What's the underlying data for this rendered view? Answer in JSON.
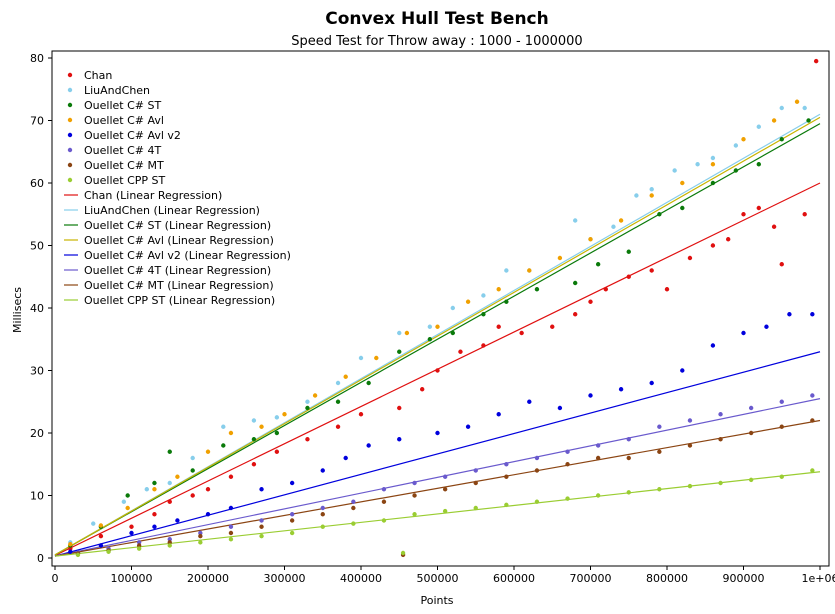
{
  "chart_data": {
    "type": "scatter",
    "title": "Convex Hull Test Bench",
    "subtitle": "Speed Test for Throw away : 1000 - 1000000",
    "xlabel": "Points",
    "ylabel": "Millisecs",
    "xlim": [
      0,
      1000000
    ],
    "ylim": [
      0,
      80
    ],
    "x_ticks": [
      0,
      100000,
      200000,
      300000,
      400000,
      500000,
      600000,
      700000,
      800000,
      900000,
      1000000
    ],
    "x_tick_labels": [
      "0",
      "100000",
      "200000",
      "300000",
      "400000",
      "500000",
      "600000",
      "700000",
      "800000",
      "900000",
      "1e+06"
    ],
    "y_ticks": [
      0,
      10,
      20,
      30,
      40,
      50,
      60,
      70,
      80
    ],
    "y_tick_labels": [
      "0",
      "10",
      "20",
      "30",
      "40",
      "50",
      "60",
      "70",
      "80"
    ],
    "grid": false,
    "legend_placement": "top-left",
    "series": [
      {
        "name": "Chan",
        "color": "#e01010",
        "regression": [
          0.4,
          60.0
        ],
        "points": [
          [
            20000,
            1.5
          ],
          [
            60000,
            3.5
          ],
          [
            100000,
            5
          ],
          [
            130000,
            7
          ],
          [
            150000,
            9
          ],
          [
            180000,
            10
          ],
          [
            200000,
            11
          ],
          [
            230000,
            13
          ],
          [
            260000,
            15
          ],
          [
            290000,
            17
          ],
          [
            330000,
            19
          ],
          [
            370000,
            21
          ],
          [
            400000,
            23
          ],
          [
            450000,
            24
          ],
          [
            480000,
            27
          ],
          [
            500000,
            30
          ],
          [
            530000,
            33
          ],
          [
            560000,
            34
          ],
          [
            580000,
            37
          ],
          [
            610000,
            36
          ],
          [
            650000,
            37
          ],
          [
            680000,
            39
          ],
          [
            700000,
            41
          ],
          [
            720000,
            43
          ],
          [
            750000,
            45
          ],
          [
            780000,
            46
          ],
          [
            800000,
            43
          ],
          [
            830000,
            48
          ],
          [
            860000,
            50
          ],
          [
            880000,
            51
          ],
          [
            900000,
            55
          ],
          [
            920000,
            56
          ],
          [
            940000,
            53
          ],
          [
            950000,
            47
          ],
          [
            980000,
            55
          ],
          [
            995000,
            79.5
          ]
        ]
      },
      {
        "name": "LiuAndChen",
        "color": "#87ceeb",
        "regression": [
          0.5,
          71.0
        ],
        "points": [
          [
            20000,
            2.5
          ],
          [
            50000,
            5.5
          ],
          [
            90000,
            9
          ],
          [
            120000,
            11
          ],
          [
            150000,
            12
          ],
          [
            180000,
            16
          ],
          [
            220000,
            21
          ],
          [
            260000,
            22
          ],
          [
            290000,
            22.5
          ],
          [
            330000,
            25
          ],
          [
            370000,
            28
          ],
          [
            400000,
            32
          ],
          [
            450000,
            36
          ],
          [
            490000,
            37
          ],
          [
            520000,
            40
          ],
          [
            560000,
            42
          ],
          [
            590000,
            46
          ],
          [
            620000,
            46
          ],
          [
            680000,
            54
          ],
          [
            700000,
            51
          ],
          [
            730000,
            53
          ],
          [
            760000,
            58
          ],
          [
            780000,
            59
          ],
          [
            810000,
            62
          ],
          [
            840000,
            63
          ],
          [
            860000,
            64
          ],
          [
            890000,
            66
          ],
          [
            920000,
            69
          ],
          [
            950000,
            72
          ],
          [
            980000,
            72
          ]
        ]
      },
      {
        "name": "Ouellet C# ST",
        "color": "#0a7a0a",
        "regression": [
          0.5,
          69.5
        ],
        "points": [
          [
            20000,
            2
          ],
          [
            60000,
            5
          ],
          [
            95000,
            10
          ],
          [
            130000,
            12
          ],
          [
            150000,
            17
          ],
          [
            180000,
            14
          ],
          [
            220000,
            18
          ],
          [
            260000,
            19
          ],
          [
            290000,
            20
          ],
          [
            330000,
            24
          ],
          [
            370000,
            25
          ],
          [
            410000,
            28
          ],
          [
            450000,
            33
          ],
          [
            490000,
            35
          ],
          [
            520000,
            36
          ],
          [
            560000,
            39
          ],
          [
            590000,
            41
          ],
          [
            630000,
            43
          ],
          [
            680000,
            44
          ],
          [
            710000,
            47
          ],
          [
            750000,
            49
          ],
          [
            790000,
            55
          ],
          [
            820000,
            56
          ],
          [
            860000,
            60
          ],
          [
            890000,
            62
          ],
          [
            920000,
            63
          ],
          [
            950000,
            67
          ],
          [
            985000,
            70
          ]
        ]
      },
      {
        "name": "Ouellet C# Avl",
        "color": "#f0a000",
        "regression": [
          0.5,
          70.5
        ],
        "points": [
          [
            20000,
            2.2
          ],
          [
            60000,
            5.2
          ],
          [
            95000,
            8
          ],
          [
            130000,
            11
          ],
          [
            160000,
            13
          ],
          [
            200000,
            17
          ],
          [
            230000,
            20
          ],
          [
            270000,
            21
          ],
          [
            300000,
            23
          ],
          [
            340000,
            26
          ],
          [
            380000,
            29
          ],
          [
            420000,
            32
          ],
          [
            460000,
            36
          ],
          [
            500000,
            37
          ],
          [
            540000,
            41
          ],
          [
            580000,
            43
          ],
          [
            620000,
            46
          ],
          [
            660000,
            48
          ],
          [
            700000,
            51
          ],
          [
            740000,
            54
          ],
          [
            780000,
            58
          ],
          [
            820000,
            60
          ],
          [
            860000,
            63
          ],
          [
            900000,
            67
          ],
          [
            940000,
            70
          ],
          [
            970000,
            73
          ]
        ]
      },
      {
        "name": "Ouellet C# Avl v2",
        "color": "#0000dd",
        "regression": [
          0.3,
          33.0
        ],
        "points": [
          [
            20000,
            1
          ],
          [
            60000,
            2
          ],
          [
            100000,
            4
          ],
          [
            130000,
            5
          ],
          [
            160000,
            6
          ],
          [
            200000,
            7
          ],
          [
            230000,
            8
          ],
          [
            270000,
            11
          ],
          [
            310000,
            12
          ],
          [
            350000,
            14
          ],
          [
            380000,
            16
          ],
          [
            410000,
            18
          ],
          [
            450000,
            19
          ],
          [
            500000,
            20
          ],
          [
            540000,
            21
          ],
          [
            580000,
            23
          ],
          [
            620000,
            25
          ],
          [
            660000,
            24
          ],
          [
            700000,
            26
          ],
          [
            740000,
            27
          ],
          [
            780000,
            28
          ],
          [
            820000,
            30
          ],
          [
            860000,
            34
          ],
          [
            900000,
            36
          ],
          [
            930000,
            37
          ],
          [
            960000,
            39
          ],
          [
            990000,
            39
          ]
        ]
      },
      {
        "name": "Ouellet C# 4T",
        "color": "#6a5acd",
        "regression": [
          0.3,
          25.5
        ],
        "points": [
          [
            30000,
            0.8
          ],
          [
            70000,
            1.5
          ],
          [
            110000,
            2.5
          ],
          [
            150000,
            3
          ],
          [
            190000,
            4
          ],
          [
            230000,
            5
          ],
          [
            270000,
            6
          ],
          [
            310000,
            7
          ],
          [
            350000,
            8
          ],
          [
            390000,
            9
          ],
          [
            430000,
            11
          ],
          [
            470000,
            12
          ],
          [
            510000,
            13
          ],
          [
            550000,
            14
          ],
          [
            590000,
            15
          ],
          [
            630000,
            16
          ],
          [
            670000,
            17
          ],
          [
            710000,
            18
          ],
          [
            750000,
            19
          ],
          [
            790000,
            21
          ],
          [
            830000,
            22
          ],
          [
            870000,
            23
          ],
          [
            910000,
            24
          ],
          [
            950000,
            25
          ],
          [
            990000,
            26
          ]
        ]
      },
      {
        "name": "Ouellet C# MT",
        "color": "#8b4513",
        "regression": [
          0.3,
          22.0
        ],
        "points": [
          [
            30000,
            0.7
          ],
          [
            70000,
            1.2
          ],
          [
            110000,
            2
          ],
          [
            150000,
            2.5
          ],
          [
            190000,
            3.5
          ],
          [
            230000,
            4
          ],
          [
            270000,
            5
          ],
          [
            310000,
            6
          ],
          [
            350000,
            7
          ],
          [
            390000,
            8
          ],
          [
            430000,
            9
          ],
          [
            455000,
            0.5
          ],
          [
            470000,
            10
          ],
          [
            510000,
            11
          ],
          [
            550000,
            12
          ],
          [
            590000,
            13
          ],
          [
            630000,
            14
          ],
          [
            670000,
            15
          ],
          [
            710000,
            16
          ],
          [
            750000,
            16
          ],
          [
            790000,
            17
          ],
          [
            830000,
            18
          ],
          [
            870000,
            19
          ],
          [
            910000,
            20
          ],
          [
            950000,
            21
          ],
          [
            990000,
            22
          ]
        ]
      },
      {
        "name": "Ouellet CPP ST",
        "color": "#9acd32",
        "regression": [
          0.3,
          13.8
        ],
        "points": [
          [
            30000,
            0.5
          ],
          [
            70000,
            1
          ],
          [
            110000,
            1.5
          ],
          [
            150000,
            2
          ],
          [
            190000,
            2.5
          ],
          [
            230000,
            3
          ],
          [
            270000,
            3.5
          ],
          [
            310000,
            4
          ],
          [
            350000,
            5
          ],
          [
            390000,
            5.5
          ],
          [
            430000,
            6
          ],
          [
            455000,
            0.8
          ],
          [
            470000,
            7
          ],
          [
            510000,
            7.5
          ],
          [
            550000,
            8
          ],
          [
            590000,
            8.5
          ],
          [
            630000,
            9
          ],
          [
            670000,
            9.5
          ],
          [
            710000,
            10
          ],
          [
            750000,
            10.5
          ],
          [
            790000,
            11
          ],
          [
            830000,
            11.5
          ],
          [
            870000,
            12
          ],
          [
            910000,
            12.5
          ],
          [
            950000,
            13
          ],
          [
            990000,
            14
          ]
        ]
      }
    ],
    "legend": [
      {
        "label": "Chan",
        "kind": "marker",
        "color": "#e01010"
      },
      {
        "label": "LiuAndChen",
        "kind": "marker",
        "color": "#87ceeb"
      },
      {
        "label": "Ouellet C# ST",
        "kind": "marker",
        "color": "#0a7a0a"
      },
      {
        "label": "Ouellet C# Avl",
        "kind": "marker",
        "color": "#f0a000"
      },
      {
        "label": "Ouellet C# Avl v2",
        "kind": "marker",
        "color": "#0000dd"
      },
      {
        "label": "Ouellet C# 4T",
        "kind": "marker",
        "color": "#6a5acd"
      },
      {
        "label": "Ouellet C# MT",
        "kind": "marker",
        "color": "#8b4513"
      },
      {
        "label": "Ouellet CPP ST",
        "kind": "marker",
        "color": "#9acd32"
      },
      {
        "label": "Chan (Linear Regression)",
        "kind": "line",
        "color": "#e01010"
      },
      {
        "label": "LiuAndChen (Linear Regression)",
        "kind": "line",
        "color": "#87ceeb"
      },
      {
        "label": "Ouellet C# ST (Linear Regression)",
        "kind": "line",
        "color": "#0a7a0a"
      },
      {
        "label": "Ouellet C# Avl (Linear Regression)",
        "kind": "line",
        "color": "#c8b400"
      },
      {
        "label": "Ouellet C# Avl v2 (Linear Regression)",
        "kind": "line",
        "color": "#0000dd"
      },
      {
        "label": "Ouellet C# 4T (Linear Regression)",
        "kind": "line",
        "color": "#6a5acd"
      },
      {
        "label": "Ouellet C# MT (Linear Regression)",
        "kind": "line",
        "color": "#8b4513"
      },
      {
        "label": "Ouellet CPP ST (Linear Regression)",
        "kind": "line",
        "color": "#9acd32"
      }
    ]
  }
}
